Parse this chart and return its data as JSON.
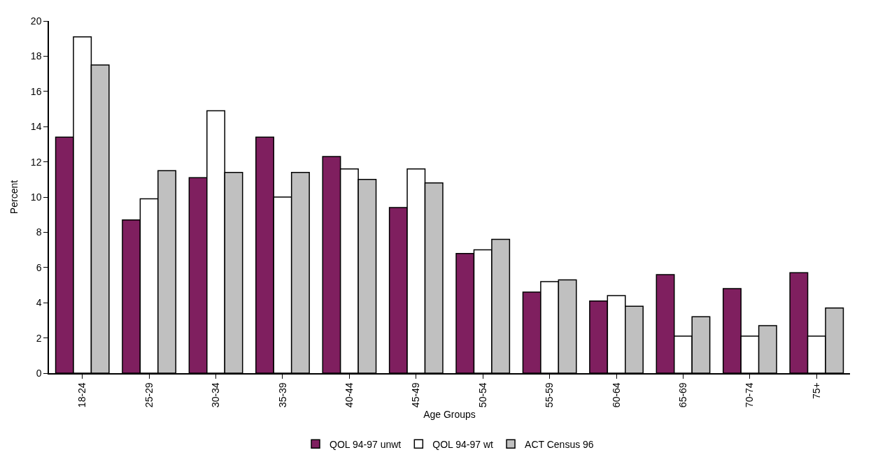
{
  "chart_data": {
    "type": "bar",
    "xlabel": "Age Groups",
    "ylabel": "Percent",
    "categories": [
      "18-24",
      "25-29",
      "30-34",
      "35-39",
      "40-44",
      "45-49",
      "50-54",
      "55-59",
      "60-64",
      "65-69",
      "70-74",
      "75+"
    ],
    "series": [
      {
        "name": "QOL 94-97 unwt",
        "color": "#7f1f5f",
        "values": [
          13.4,
          8.7,
          11.1,
          13.4,
          12.3,
          9.4,
          6.8,
          4.6,
          4.1,
          5.6,
          4.8,
          5.7
        ]
      },
      {
        "name": "QOL 94-97 wt",
        "color": "#ffffff",
        "values": [
          19.1,
          9.9,
          14.9,
          10.0,
          11.6,
          11.6,
          7.0,
          5.2,
          4.4,
          2.1,
          2.1,
          2.1
        ]
      },
      {
        "name": "ACT Census 96",
        "color": "#c0c0c0",
        "values": [
          17.5,
          11.5,
          11.4,
          11.4,
          11.0,
          10.8,
          7.6,
          5.3,
          3.8,
          3.2,
          2.7,
          3.7
        ]
      }
    ],
    "ylim": [
      0,
      20
    ],
    "yticks": [
      0,
      2,
      4,
      6,
      8,
      10,
      12,
      14,
      16,
      18,
      20
    ],
    "legend": "bottom"
  }
}
